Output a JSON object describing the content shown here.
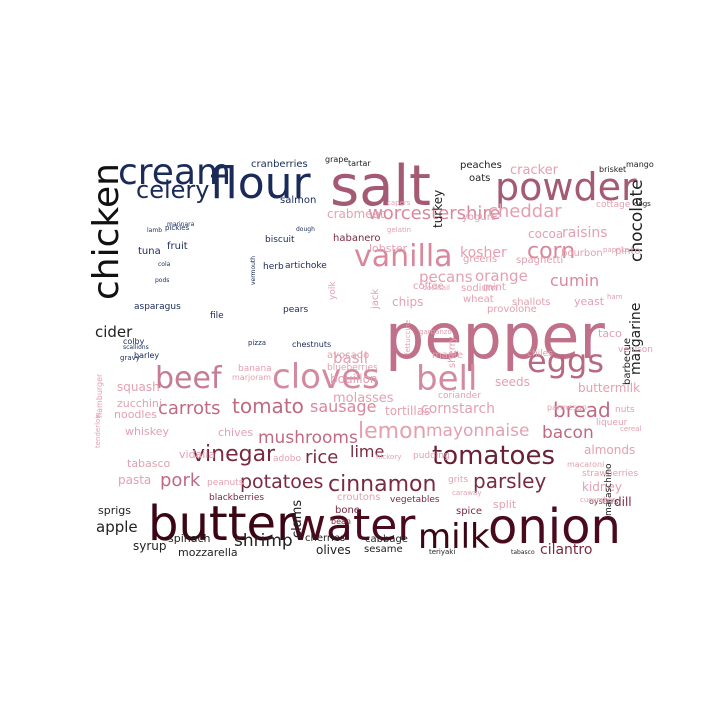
{
  "cloud": {
    "words": [
      {
        "text": "salt",
        "color": "#a45a74"
      },
      {
        "text": "pepper",
        "color": "#c07088"
      },
      {
        "text": "butter",
        "color": "#3b0514"
      },
      {
        "text": "water",
        "color": "#4a0a1d"
      },
      {
        "text": "onion",
        "color": "#4a0a1d"
      },
      {
        "text": "powder",
        "color": "#a45a74"
      },
      {
        "text": "flour",
        "color": "#1a2b5a"
      },
      {
        "text": "cream",
        "color": "#1a2b5a"
      },
      {
        "text": "chicken",
        "color": "#111111"
      },
      {
        "text": "milk",
        "color": "#3b0514"
      },
      {
        "text": "cloves",
        "color": "#d48a9e"
      },
      {
        "text": "bell",
        "color": "#d48a9e"
      },
      {
        "text": "eggs",
        "color": "#b86880"
      },
      {
        "text": "beef",
        "color": "#c67c92"
      },
      {
        "text": "vanilla",
        "color": "#d9889c"
      },
      {
        "text": "celery",
        "color": "#1a2b5a"
      },
      {
        "text": "tomatoes",
        "color": "#6a2036"
      },
      {
        "text": "cinnamon",
        "color": "#7a2a40"
      },
      {
        "text": "vinegar",
        "color": "#7a2a40"
      },
      {
        "text": "corn",
        "color": "#d9889c"
      },
      {
        "text": "potatoes",
        "color": "#7a2a40"
      },
      {
        "text": "lemon",
        "color": "#e4a0b0"
      },
      {
        "text": "tomato",
        "color": "#c06a82"
      },
      {
        "text": "parsley",
        "color": "#7a2a40"
      },
      {
        "text": "shrimp",
        "color": "#222222"
      },
      {
        "text": "worcestershire",
        "color": "#d9889c"
      },
      {
        "text": "cheddar",
        "color": "#e4a0b0"
      },
      {
        "text": "carrots",
        "color": "#c06a82"
      },
      {
        "text": "mushrooms",
        "color": "#c06a82"
      },
      {
        "text": "rice",
        "color": "#7a2a40"
      },
      {
        "text": "mayonnaise",
        "color": "#e4a0b0"
      },
      {
        "text": "bread",
        "color": "#c06a82"
      },
      {
        "text": "chocolate",
        "color": "#222222"
      },
      {
        "text": "pork",
        "color": "#c06a82"
      },
      {
        "text": "cumin",
        "color": "#d9889c"
      },
      {
        "text": "sausage",
        "color": "#d9889c"
      },
      {
        "text": "bacon",
        "color": "#c06a82"
      },
      {
        "text": "cracker",
        "color": "#e4a0b0"
      },
      {
        "text": "apple",
        "color": "#222222"
      },
      {
        "text": "cider",
        "color": "#222222"
      },
      {
        "text": "margarine",
        "color": "#222222"
      },
      {
        "text": "orange",
        "color": "#e4a0b0"
      },
      {
        "text": "pecans",
        "color": "#e4a0b0"
      },
      {
        "text": "lime",
        "color": "#7a2a40"
      },
      {
        "text": "basil",
        "color": "#e4a0b0"
      },
      {
        "text": "cilantro",
        "color": "#7a2a40"
      },
      {
        "text": "crabmeat",
        "color": "#e4a0b0"
      },
      {
        "text": "raisins",
        "color": "#e4a0b0"
      },
      {
        "text": "cornstarch",
        "color": "#e4a0b0"
      },
      {
        "text": "kosher",
        "color": "#e4a0b0"
      },
      {
        "text": "cocoa",
        "color": "#e4a0b0"
      },
      {
        "text": "bouillon",
        "color": "#e4a0b0"
      },
      {
        "text": "molasses",
        "color": "#e4a0b0"
      },
      {
        "text": "chips",
        "color": "#e4a0b0"
      },
      {
        "text": "seeds",
        "color": "#e4a0b0"
      },
      {
        "text": "buttermilk",
        "color": "#e4a0b0"
      },
      {
        "text": "tortillas",
        "color": "#e4a0b0"
      },
      {
        "text": "squash",
        "color": "#e4a0b0"
      },
      {
        "text": "zucchini",
        "color": "#e4a0b0"
      },
      {
        "text": "noodles",
        "color": "#e4a0b0"
      },
      {
        "text": "whiskey",
        "color": "#e4a0b0"
      },
      {
        "text": "tabasco",
        "color": "#e4a0b0"
      },
      {
        "text": "vidalia",
        "color": "#e4a0b0"
      },
      {
        "text": "chives",
        "color": "#e4a0b0"
      },
      {
        "text": "pasta",
        "color": "#e4a0b0"
      },
      {
        "text": "almonds",
        "color": "#e4a0b0"
      },
      {
        "text": "kidney",
        "color": "#e4a0b0"
      },
      {
        "text": "dill",
        "color": "#7a2a40"
      },
      {
        "text": "split",
        "color": "#e4a0b0"
      },
      {
        "text": "syrup",
        "color": "#222222"
      },
      {
        "text": "spinach",
        "color": "#222222"
      },
      {
        "text": "mozzarella",
        "color": "#222222"
      },
      {
        "text": "clams",
        "color": "#222222"
      },
      {
        "text": "olives",
        "color": "#222222"
      },
      {
        "text": "sesame",
        "color": "#222222"
      },
      {
        "text": "cabbage",
        "color": "#222222"
      },
      {
        "text": "cherries",
        "color": "#222222"
      },
      {
        "text": "bone",
        "color": "#7a2a40"
      },
      {
        "text": "spice",
        "color": "#7a2a40"
      },
      {
        "text": "sprigs",
        "color": "#222222"
      },
      {
        "text": "turkey",
        "color": "#222222"
      },
      {
        "text": "yogurt",
        "color": "#e4a0b0"
      },
      {
        "text": "oats",
        "color": "#222222"
      },
      {
        "text": "peaches",
        "color": "#222222"
      },
      {
        "text": "cranberries",
        "color": "#1a2b5a"
      },
      {
        "text": "salmon",
        "color": "#1a2b5a"
      },
      {
        "text": "lobster",
        "color": "#e4a0b0"
      },
      {
        "text": "spaghetti",
        "color": "#e4a0b0"
      },
      {
        "text": "bourbon",
        "color": "#e4a0b0"
      },
      {
        "text": "greens",
        "color": "#e4a0b0"
      },
      {
        "text": "mint",
        "color": "#e4a0b0"
      },
      {
        "text": "coffee",
        "color": "#e4a0b0"
      },
      {
        "text": "sodium",
        "color": "#e4a0b0"
      },
      {
        "text": "wheat",
        "color": "#e4a0b0"
      },
      {
        "text": "provolone",
        "color": "#e4a0b0"
      },
      {
        "text": "shallots",
        "color": "#e4a0b0"
      },
      {
        "text": "yeast",
        "color": "#e4a0b0"
      },
      {
        "text": "taco",
        "color": "#e4a0b0"
      },
      {
        "text": "chiles",
        "color": "#e4a0b0"
      },
      {
        "text": "maple",
        "color": "#e4a0b0"
      },
      {
        "text": "avocado",
        "color": "#e4a0b0"
      },
      {
        "text": "blueberries",
        "color": "#e4a0b0"
      },
      {
        "text": "sherry",
        "color": "#e4a0b0"
      },
      {
        "text": "jack",
        "color": "#e4a0b0"
      },
      {
        "text": "yolk",
        "color": "#e4a0b0"
      },
      {
        "text": "habanero",
        "color": "#7a2a40"
      },
      {
        "text": "cottage",
        "color": "#e4a0b0"
      },
      {
        "text": "pinto",
        "color": "#e4a0b0"
      },
      {
        "text": "venison",
        "color": "#e4a0b0"
      },
      {
        "text": "barbecue",
        "color": "#222222"
      },
      {
        "text": "nuts",
        "color": "#e4a0b0"
      },
      {
        "text": "strawberries",
        "color": "#e4a0b0"
      },
      {
        "text": "liqueur",
        "color": "#e4a0b0"
      },
      {
        "text": "coriander",
        "color": "#e4a0b0"
      },
      {
        "text": "pudding",
        "color": "#e4a0b0"
      },
      {
        "text": "grits",
        "color": "#e4a0b0"
      },
      {
        "text": "adobo",
        "color": "#e4a0b0"
      },
      {
        "text": "peanuts",
        "color": "#e4a0b0"
      },
      {
        "text": "blackberries",
        "color": "#7a2a40"
      },
      {
        "text": "croutons",
        "color": "#e4a0b0"
      },
      {
        "text": "bean",
        "color": "#7a2a40"
      },
      {
        "text": "vegetables",
        "color": "#7a2a40"
      },
      {
        "text": "oysters",
        "color": "#7a2a40"
      },
      {
        "text": "maraschino",
        "color": "#222222"
      },
      {
        "text": "fruit",
        "color": "#1a2b5a"
      },
      {
        "text": "tuna",
        "color": "#1a2b5a"
      },
      {
        "text": "asparagus",
        "color": "#1a2b5a"
      },
      {
        "text": "herb",
        "color": "#1a2b5a"
      },
      {
        "text": "artichoke",
        "color": "#1a2b5a"
      },
      {
        "text": "pears",
        "color": "#1a2b5a"
      },
      {
        "text": "file",
        "color": "#1a2b5a"
      },
      {
        "text": "biscuit",
        "color": "#1a2b5a"
      },
      {
        "text": "colby",
        "color": "#1a2b5a"
      },
      {
        "text": "barley",
        "color": "#1a2b5a"
      },
      {
        "text": "banana",
        "color": "#e4a0b0"
      },
      {
        "text": "marjoram",
        "color": "#e4a0b0"
      },
      {
        "text": "hamburger",
        "color": "#e4a0b0"
      },
      {
        "text": "cocktail",
        "color": "#e4a0b0"
      },
      {
        "text": "tartar",
        "color": "#222222"
      },
      {
        "text": "grape",
        "color": "#222222"
      },
      {
        "text": "mango",
        "color": "#222222"
      },
      {
        "text": "brisket",
        "color": "#222222"
      },
      {
        "text": "dogs",
        "color": "#222222"
      },
      {
        "text": "chestnuts",
        "color": "#1a2b5a"
      },
      {
        "text": "tenderloin",
        "color": "#e4a0b0"
      },
      {
        "text": "cucumber",
        "color": "#e4a0b0"
      },
      {
        "text": "macaroni",
        "color": "#e4a0b0"
      },
      {
        "text": "hickory",
        "color": "#e4a0b0"
      },
      {
        "text": "caraway",
        "color": "#e4a0b0"
      },
      {
        "text": "fettuccine",
        "color": "#e4a0b0"
      },
      {
        "text": "garbanzo",
        "color": "#e4a0b0"
      },
      {
        "text": "cereal",
        "color": "#e4a0b0"
      },
      {
        "text": "teriyaki",
        "color": "#222222"
      },
      {
        "text": "tabasco",
        "color": "#222222"
      },
      {
        "text": "pizza",
        "color": "#1a2b5a"
      },
      {
        "text": "pickles",
        "color": "#1a2b5a"
      },
      {
        "text": "marinara",
        "color": "#1a2b5a"
      },
      {
        "text": "lamb",
        "color": "#1a2b5a"
      },
      {
        "text": "cola",
        "color": "#1a2b5a"
      },
      {
        "text": "pods",
        "color": "#1a2b5a"
      },
      {
        "text": "scallions",
        "color": "#1a2b5a"
      },
      {
        "text": "gravy",
        "color": "#1a2b5a"
      },
      {
        "text": "dough",
        "color": "#1a2b5a"
      },
      {
        "text": "vermouth",
        "color": "#1a2b5a"
      },
      {
        "text": "capers",
        "color": "#e4a0b0"
      },
      {
        "text": "gelatin",
        "color": "#e4a0b0"
      },
      {
        "text": "paprika",
        "color": "#e4a0b0"
      },
      {
        "text": "ham",
        "color": "#e4a0b0"
      },
      {
        "text": "parmesan",
        "color": "#e4a0b0"
      }
    ]
  }
}
